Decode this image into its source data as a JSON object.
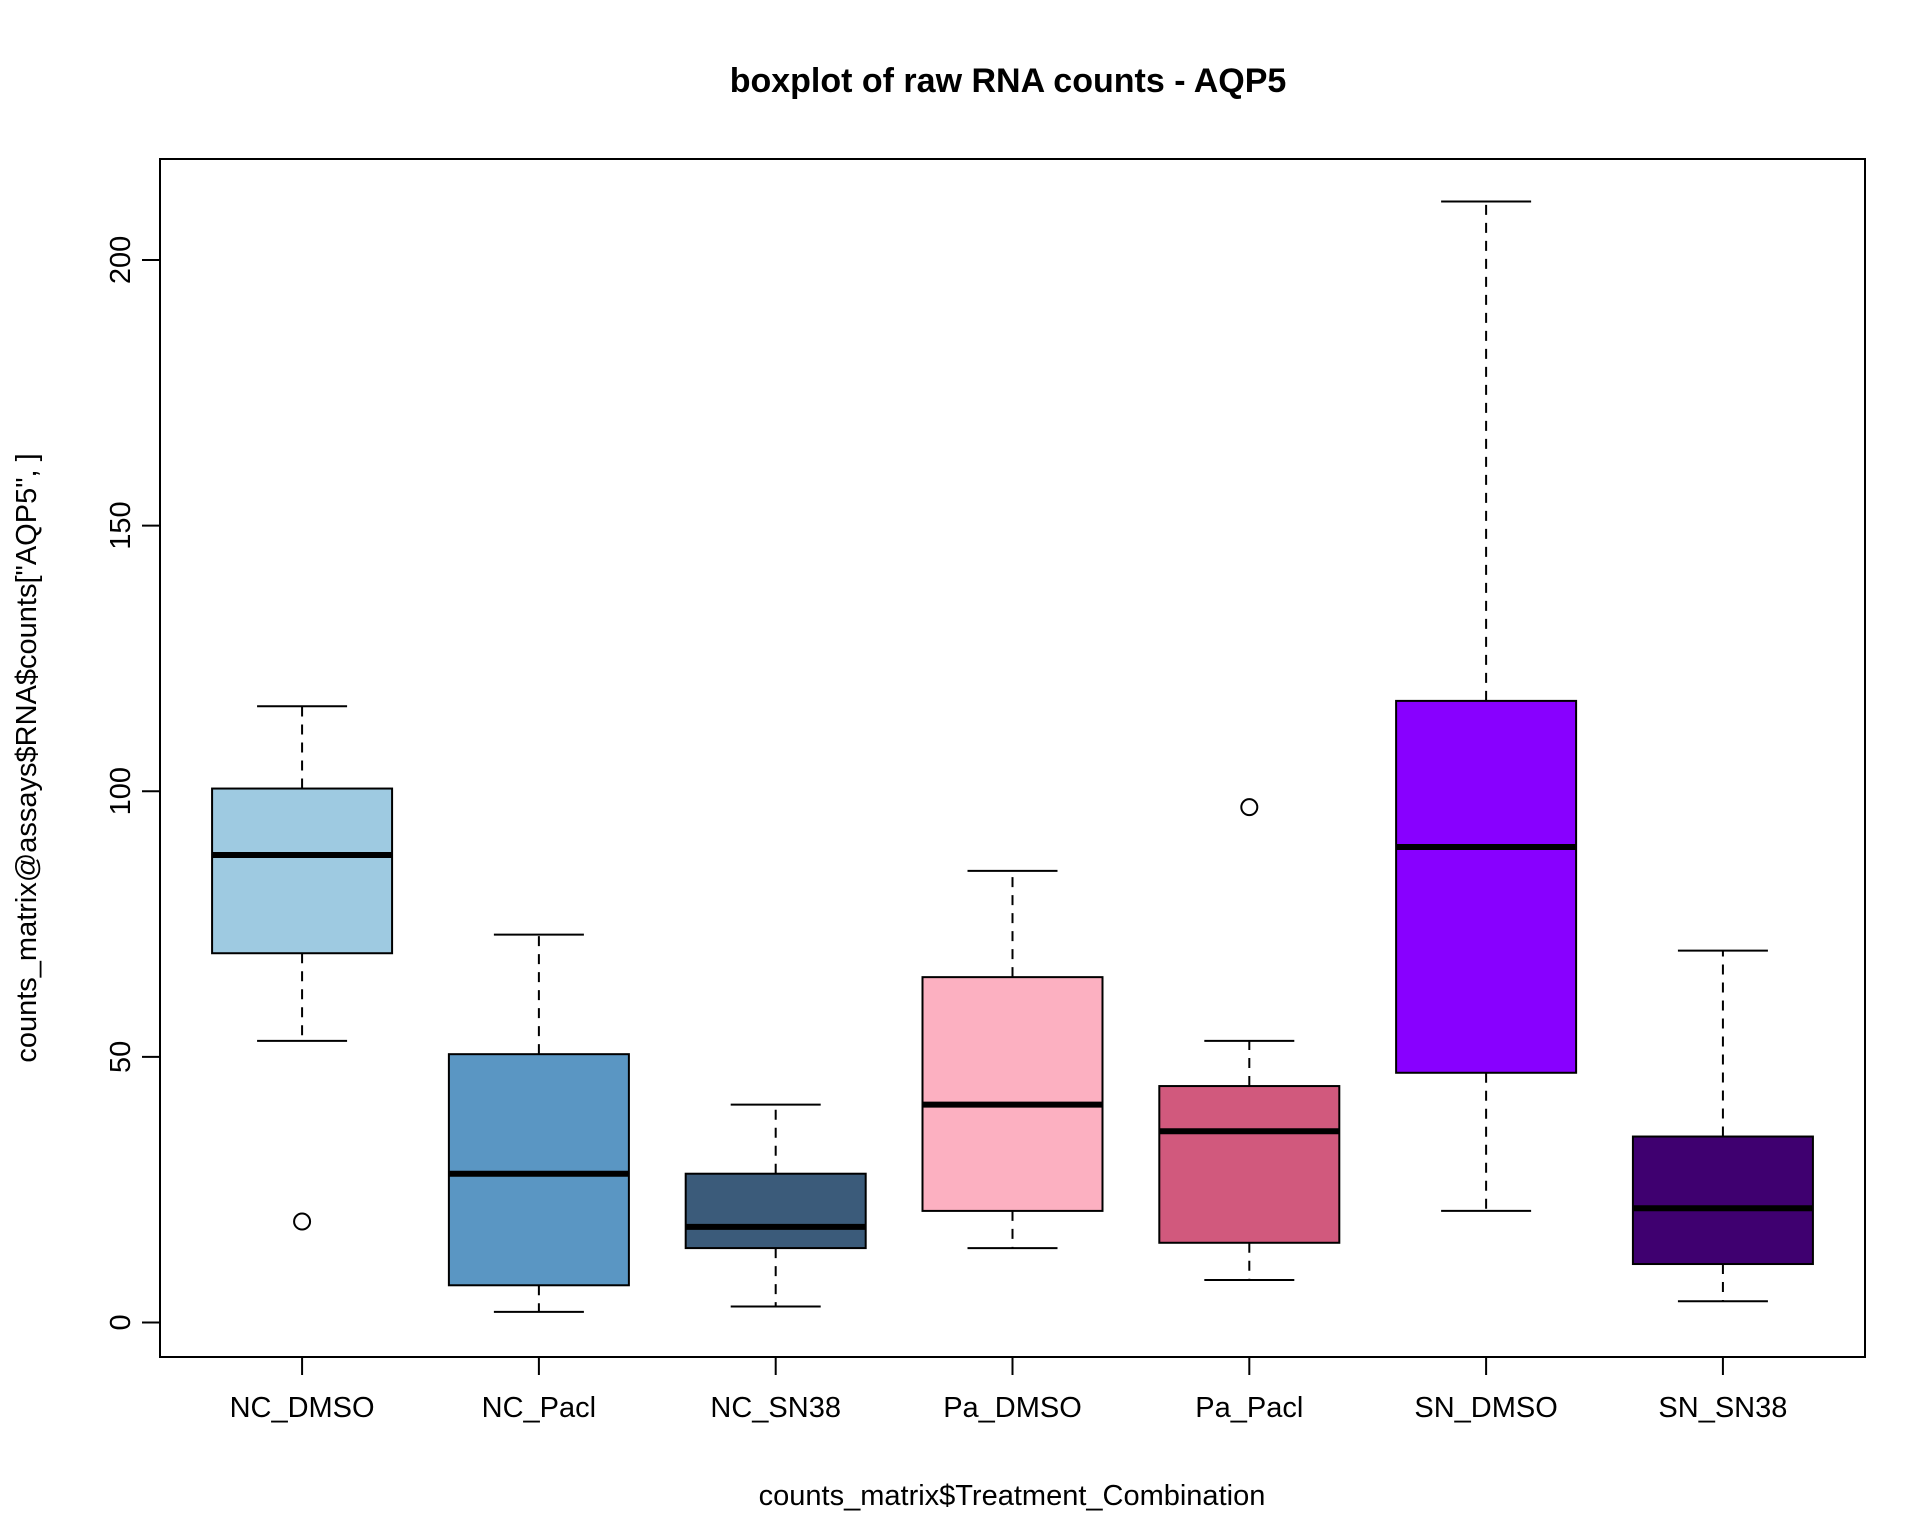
{
  "chart_data": {
    "type": "boxplot",
    "title": "boxplot of raw RNA counts - AQP5",
    "xlabel": "counts_matrix$Treatment_Combination",
    "ylabel": "counts_matrix@assays$RNA$counts[\"AQP5\", ]",
    "ylim": [
      -6.5,
      219
    ],
    "yticks": [
      0,
      50,
      100,
      150,
      200
    ],
    "grid": false,
    "categories": [
      "NC_DMSO",
      "NC_Pacl",
      "NC_SN38",
      "Pa_DMSO",
      "Pa_Pacl",
      "SN_DMSO",
      "SN_SN38"
    ],
    "boxes": [
      {
        "name": "NC_DMSO",
        "whisker_low": 53,
        "q1": 69.5,
        "median": 88,
        "q3": 100.5,
        "whisker_high": 116,
        "outliers": [
          19
        ],
        "color": "#9ECAE1"
      },
      {
        "name": "NC_Pacl",
        "whisker_low": 2,
        "q1": 7,
        "median": 28,
        "q3": 50.5,
        "whisker_high": 73,
        "outliers": [],
        "color": "#5A96C3"
      },
      {
        "name": "NC_SN38",
        "whisker_low": 3,
        "q1": 14,
        "median": 18,
        "q3": 28,
        "whisker_high": 41,
        "outliers": [],
        "color": "#3B5B7A"
      },
      {
        "name": "Pa_DMSO",
        "whisker_low": 14,
        "q1": 21,
        "median": 41,
        "q3": 65,
        "whisker_high": 85,
        "outliers": [],
        "color": "#FCB0C1"
      },
      {
        "name": "Pa_Pacl",
        "whisker_low": 8,
        "q1": 15,
        "median": 36,
        "q3": 44.5,
        "whisker_high": 53,
        "outliers": [
          97
        ],
        "color": "#D1597D"
      },
      {
        "name": "SN_DMSO",
        "whisker_low": 21,
        "q1": 47,
        "median": 89.5,
        "q3": 117,
        "whisker_high": 211,
        "outliers": [],
        "color": "#8800FF"
      },
      {
        "name": "SN_SN38",
        "whisker_low": 4,
        "q1": 11,
        "median": 21.5,
        "q3": 35,
        "whisker_high": 70,
        "outliers": [],
        "color": "#3F0070"
      }
    ]
  }
}
